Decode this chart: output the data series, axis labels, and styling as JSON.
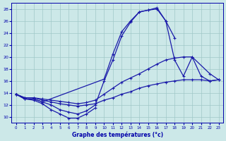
{
  "xlabel": "Graphe des températures (°c)",
  "bg_color": "#cce8e8",
  "grid_color": "#a0c8c8",
  "line_color": "#1a1aaa",
  "markersize": 2.0,
  "linewidth": 0.9,
  "xlim": [
    -0.5,
    23.5
  ],
  "ylim": [
    9,
    29
  ],
  "yticks": [
    10,
    12,
    14,
    16,
    18,
    20,
    22,
    24,
    26,
    28
  ],
  "xticks": [
    0,
    1,
    2,
    3,
    4,
    5,
    6,
    7,
    8,
    9,
    10,
    11,
    12,
    13,
    14,
    15,
    16,
    17,
    18,
    19,
    20,
    21,
    22,
    23
  ],
  "curves": [
    {
      "x": [
        0,
        1,
        2,
        3,
        10,
        11,
        12,
        13,
        14,
        15,
        16,
        17,
        18
      ],
      "y": [
        13.8,
        13.0,
        13.0,
        12.5,
        16.3,
        20.5,
        24.2,
        26.0,
        27.5,
        27.8,
        28.0,
        26.0,
        23.2
      ]
    },
    {
      "x": [
        0,
        1,
        2,
        3,
        4,
        5,
        6,
        7,
        8,
        9,
        10,
        11,
        12,
        13,
        14,
        15,
        16,
        17,
        18,
        19,
        20,
        21,
        22,
        23
      ],
      "y": [
        13.8,
        13.0,
        13.0,
        12.5,
        12.0,
        11.2,
        10.8,
        10.5,
        11.0,
        12.0,
        16.0,
        19.5,
        23.5,
        25.8,
        27.5,
        27.8,
        28.2,
        26.0,
        19.5,
        16.8,
        20.0,
        16.8,
        16.0,
        16.2
      ]
    },
    {
      "x": [
        0,
        1,
        2,
        3,
        4,
        5,
        6,
        7,
        8,
        9,
        10,
        11,
        12,
        13,
        14,
        15,
        16,
        17,
        18,
        19,
        20,
        22,
        23
      ],
      "y": [
        13.8,
        13.2,
        13.2,
        13.0,
        12.8,
        12.6,
        12.4,
        12.2,
        12.4,
        12.8,
        13.8,
        14.8,
        15.8,
        16.5,
        17.2,
        18.0,
        18.8,
        19.5,
        19.8,
        20.0,
        20.0,
        17.2,
        16.2
      ]
    },
    {
      "x": [
        0,
        1,
        2,
        3,
        4,
        5,
        6,
        7,
        8,
        9,
        10,
        11,
        12,
        13,
        14,
        15,
        16,
        17,
        18,
        19,
        20,
        21,
        22,
        23
      ],
      "y": [
        13.8,
        13.2,
        13.2,
        12.8,
        12.5,
        12.2,
        12.0,
        11.8,
        12.0,
        12.2,
        12.8,
        13.2,
        13.8,
        14.2,
        14.8,
        15.2,
        15.5,
        15.8,
        16.0,
        16.2,
        16.2,
        16.2,
        16.0,
        16.2
      ]
    },
    {
      "x": [
        0,
        1,
        2,
        3,
        4,
        5,
        6,
        7,
        8,
        9
      ],
      "y": [
        13.8,
        13.0,
        12.8,
        12.2,
        11.2,
        10.5,
        9.8,
        9.8,
        10.5,
        11.5
      ]
    }
  ]
}
